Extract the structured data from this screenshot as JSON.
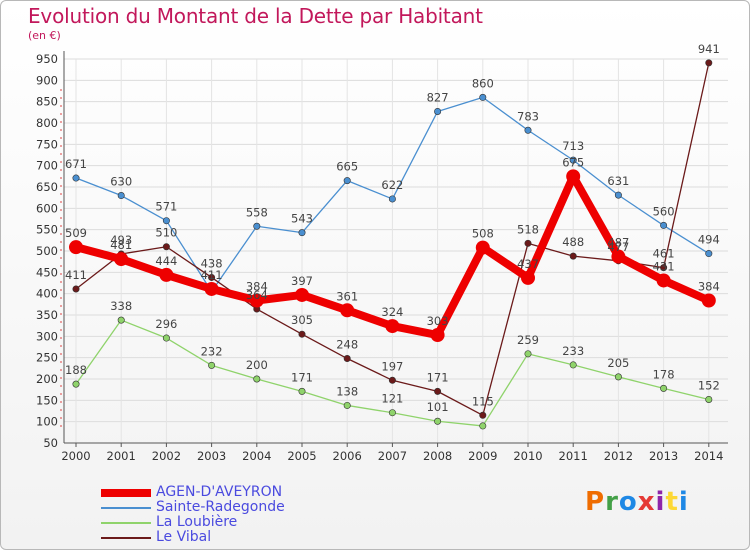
{
  "header": {
    "title": "Evolution du Montant de la Dette par Habitant",
    "subtitle": "(en €)"
  },
  "brand": {
    "name": "Proxiti",
    "letter_colors": [
      "#ef6c00",
      "#43a047",
      "#1e88e5",
      "#e53935",
      "#8e24aa",
      "#fdd835",
      "#1e88e5"
    ]
  },
  "chart_data": {
    "type": "line",
    "title": "Evolution du Montant de la Dette par Habitant",
    "subtitle": "(en €)",
    "xlabel": "",
    "ylabel": "",
    "x": [
      "2000",
      "2001",
      "2002",
      "2003",
      "2004",
      "2005",
      "2006",
      "2007",
      "2008",
      "2009",
      "2010",
      "2011",
      "2012",
      "2013",
      "2014"
    ],
    "ylim": [
      50,
      950
    ],
    "yticks": [
      "50",
      "100",
      "150",
      "200",
      "250",
      "300",
      "350",
      "400",
      "450",
      "500",
      "550",
      "600",
      "650",
      "700",
      "750",
      "800",
      "850",
      "900",
      "950"
    ],
    "grid": true,
    "legend_position": "bottom-left",
    "series": [
      {
        "name": "Sainte-Radegonde",
        "color": "#4a8fd0",
        "values": [
          671,
          630,
          571,
          405,
          558,
          543,
          665,
          622,
          827,
          860,
          783,
          713,
          631,
          560,
          494
        ],
        "labels": [
          "671",
          "630",
          "571",
          "",
          "558",
          "543",
          "665",
          "622",
          "827",
          "860",
          "783",
          "713",
          "631",
          "560",
          "494"
        ]
      },
      {
        "name": "La Loubière",
        "color": "#8fd36b",
        "values": [
          188,
          338,
          296,
          232,
          200,
          171,
          138,
          121,
          101,
          90,
          259,
          233,
          205,
          178,
          152
        ],
        "labels": [
          "188",
          "338",
          "296",
          "232",
          "200",
          "171",
          "138",
          "121",
          "101",
          "",
          "259",
          "233",
          "205",
          "178",
          "152"
        ]
      },
      {
        "name": "Le Vibal",
        "color": "#6b1a1a",
        "values": [
          411,
          493,
          510,
          438,
          364,
          305,
          248,
          197,
          171,
          115,
          518,
          488,
          477,
          461,
          941
        ],
        "labels": [
          "411",
          "493",
          "510",
          "438",
          "364",
          "305",
          "248",
          "197",
          "171",
          "115",
          "518",
          "488",
          "477",
          "461",
          "941"
        ]
      },
      {
        "name": "AGEN-D'AVEYRON",
        "color": "#ee0000",
        "values": [
          509,
          481,
          444,
          411,
          384,
          397,
          361,
          324,
          303,
          508,
          437,
          675,
          487,
          431,
          384
        ],
        "labels": [
          "509",
          "481",
          "444",
          "411",
          "384",
          "397",
          "361",
          "324",
          "303",
          "508",
          "437",
          "675",
          "487",
          "431",
          "384"
        ]
      }
    ]
  }
}
